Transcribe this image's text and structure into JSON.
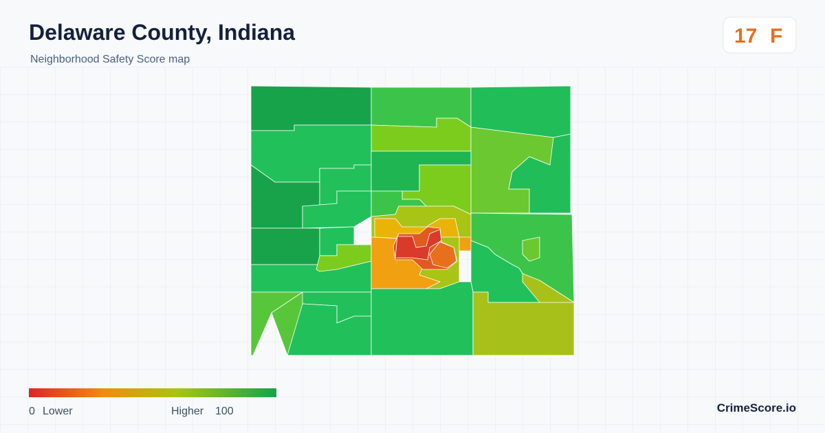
{
  "header": {
    "title": "Delaware County, Indiana",
    "subtitle": "Neighborhood Safety Score map"
  },
  "score": {
    "value": 17,
    "grade": "F"
  },
  "legend": {
    "min": 0,
    "min_label": "Lower",
    "max_label": "Higher",
    "max": 100
  },
  "brand": "CrimeScore.io"
}
